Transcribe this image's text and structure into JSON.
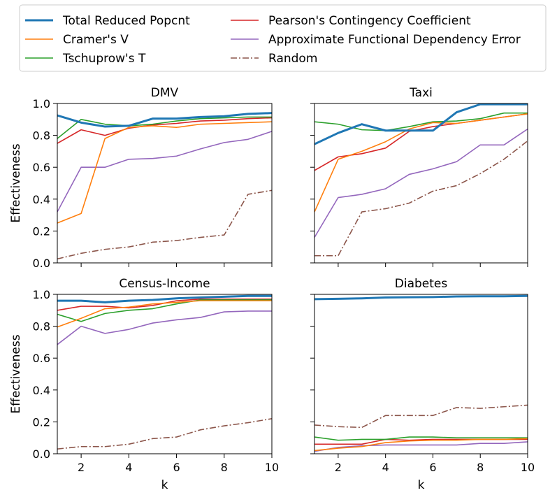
{
  "chart_data": {
    "type": "line",
    "x": [
      1,
      2,
      3,
      4,
      5,
      6,
      7,
      8,
      9,
      10
    ],
    "xlabel": "k",
    "ylabel": "Effectiveness",
    "xlim": [
      1,
      10
    ],
    "ylim": [
      0,
      1
    ],
    "xticks": [
      "2",
      "4",
      "6",
      "8",
      "10"
    ],
    "yticks": [
      "0.0",
      "0.2",
      "0.4",
      "0.6",
      "0.8",
      "1.0"
    ],
    "grid": false,
    "legend_position": "top",
    "legend": [
      {
        "name": "Total Reduced Popcnt",
        "color": "#1f77b4",
        "dash": "solid"
      },
      {
        "name": "Cramer's V",
        "color": "#ff7f0e",
        "dash": "solid"
      },
      {
        "name": "Tschuprow's T",
        "color": "#2ca02c",
        "dash": "solid"
      },
      {
        "name": "Pearson's Contingency Coefficient",
        "color": "#d62728",
        "dash": "solid"
      },
      {
        "name": "Approximate Functional Dependency Error",
        "color": "#9467bd",
        "dash": "solid"
      },
      {
        "name": "Random",
        "color": "#8c564b",
        "dash": "dashdot"
      }
    ],
    "panels": [
      {
        "title": "DMV",
        "series": [
          {
            "name": "Total Reduced Popcnt",
            "values": [
              0.925,
              0.88,
              0.855,
              0.86,
              0.905,
              0.905,
              0.915,
              0.92,
              0.935,
              0.94
            ]
          },
          {
            "name": "Cramer's V",
            "values": [
              0.25,
              0.31,
              0.78,
              0.85,
              0.86,
              0.85,
              0.87,
              0.875,
              0.88,
              0.885
            ]
          },
          {
            "name": "Tschuprow's T",
            "values": [
              0.78,
              0.9,
              0.87,
              0.86,
              0.87,
              0.89,
              0.905,
              0.91,
              0.915,
              0.915
            ]
          },
          {
            "name": "Pearson's Contingency Coefficient",
            "values": [
              0.75,
              0.835,
              0.8,
              0.845,
              0.865,
              0.875,
              0.89,
              0.895,
              0.905,
              0.91
            ]
          },
          {
            "name": "Approximate Functional Dependency Error",
            "values": [
              0.32,
              0.6,
              0.6,
              0.65,
              0.655,
              0.67,
              0.715,
              0.755,
              0.775,
              0.825
            ]
          },
          {
            "name": "Random",
            "values": [
              0.025,
              0.06,
              0.085,
              0.1,
              0.13,
              0.14,
              0.16,
              0.175,
              0.43,
              0.455
            ]
          }
        ]
      },
      {
        "title": "Taxi",
        "series": [
          {
            "name": "Total Reduced Popcnt",
            "values": [
              0.745,
              0.815,
              0.87,
              0.83,
              0.83,
              0.83,
              0.945,
              0.995,
              0.995,
              0.995
            ]
          },
          {
            "name": "Cramer's V",
            "values": [
              0.32,
              0.65,
              0.7,
              0.76,
              0.84,
              0.88,
              0.875,
              0.895,
              0.915,
              0.935
            ]
          },
          {
            "name": "Tschuprow's T",
            "values": [
              0.885,
              0.87,
              0.835,
              0.83,
              0.855,
              0.885,
              0.89,
              0.905,
              0.94,
              0.94
            ]
          },
          {
            "name": "Pearson's Contingency Coefficient",
            "values": [
              0.58,
              0.665,
              0.685,
              0.72,
              0.825,
              0.855,
              0.875,
              0.895,
              0.915,
              0.935
            ]
          },
          {
            "name": "Approximate Functional Dependency Error",
            "values": [
              0.16,
              0.41,
              0.43,
              0.465,
              0.555,
              0.59,
              0.635,
              0.74,
              0.74,
              0.84
            ]
          },
          {
            "name": "Random",
            "values": [
              0.045,
              0.045,
              0.32,
              0.34,
              0.375,
              0.45,
              0.485,
              0.56,
              0.65,
              0.765
            ]
          }
        ]
      },
      {
        "title": "Census-Income",
        "series": [
          {
            "name": "Total Reduced Popcnt",
            "values": [
              0.96,
              0.96,
              0.95,
              0.96,
              0.965,
              0.975,
              0.98,
              0.985,
              0.99,
              0.99
            ]
          },
          {
            "name": "Cramer's V",
            "values": [
              0.795,
              0.85,
              0.91,
              0.92,
              0.94,
              0.95,
              0.96,
              0.96,
              0.96,
              0.96
            ]
          },
          {
            "name": "Tschuprow's T",
            "values": [
              0.875,
              0.83,
              0.88,
              0.9,
              0.91,
              0.94,
              0.965,
              0.965,
              0.965,
              0.965
            ]
          },
          {
            "name": "Pearson's Contingency Coefficient",
            "values": [
              0.9,
              0.925,
              0.925,
              0.915,
              0.93,
              0.96,
              0.97,
              0.97,
              0.97,
              0.97
            ]
          },
          {
            "name": "Approximate Functional Dependency Error",
            "values": [
              0.685,
              0.8,
              0.755,
              0.78,
              0.82,
              0.84,
              0.855,
              0.89,
              0.895,
              0.895
            ]
          },
          {
            "name": "Random",
            "values": [
              0.03,
              0.045,
              0.045,
              0.06,
              0.095,
              0.105,
              0.15,
              0.175,
              0.195,
              0.22
            ]
          }
        ]
      },
      {
        "title": "Diabetes",
        "series": [
          {
            "name": "Total Reduced Popcnt",
            "values": [
              0.97,
              0.972,
              0.975,
              0.98,
              0.982,
              0.983,
              0.987,
              0.988,
              0.988,
              0.99
            ]
          },
          {
            "name": "Cramer's V",
            "values": [
              0.02,
              0.035,
              0.045,
              0.07,
              0.08,
              0.085,
              0.085,
              0.09,
              0.09,
              0.095
            ]
          },
          {
            "name": "Tschuprow's T",
            "values": [
              0.105,
              0.085,
              0.09,
              0.09,
              0.105,
              0.105,
              0.1,
              0.1,
              0.1,
              0.1
            ]
          },
          {
            "name": "Pearson's Contingency Coefficient",
            "values": [
              0.06,
              0.06,
              0.06,
              0.09,
              0.085,
              0.09,
              0.09,
              0.09,
              0.09,
              0.09
            ]
          },
          {
            "name": "Approximate Functional Dependency Error",
            "values": [
              0.015,
              0.04,
              0.05,
              0.055,
              0.055,
              0.055,
              0.055,
              0.065,
              0.065,
              0.075
            ]
          },
          {
            "name": "Random",
            "values": [
              0.18,
              0.17,
              0.165,
              0.24,
              0.24,
              0.24,
              0.29,
              0.285,
              0.295,
              0.305
            ]
          }
        ]
      }
    ]
  }
}
